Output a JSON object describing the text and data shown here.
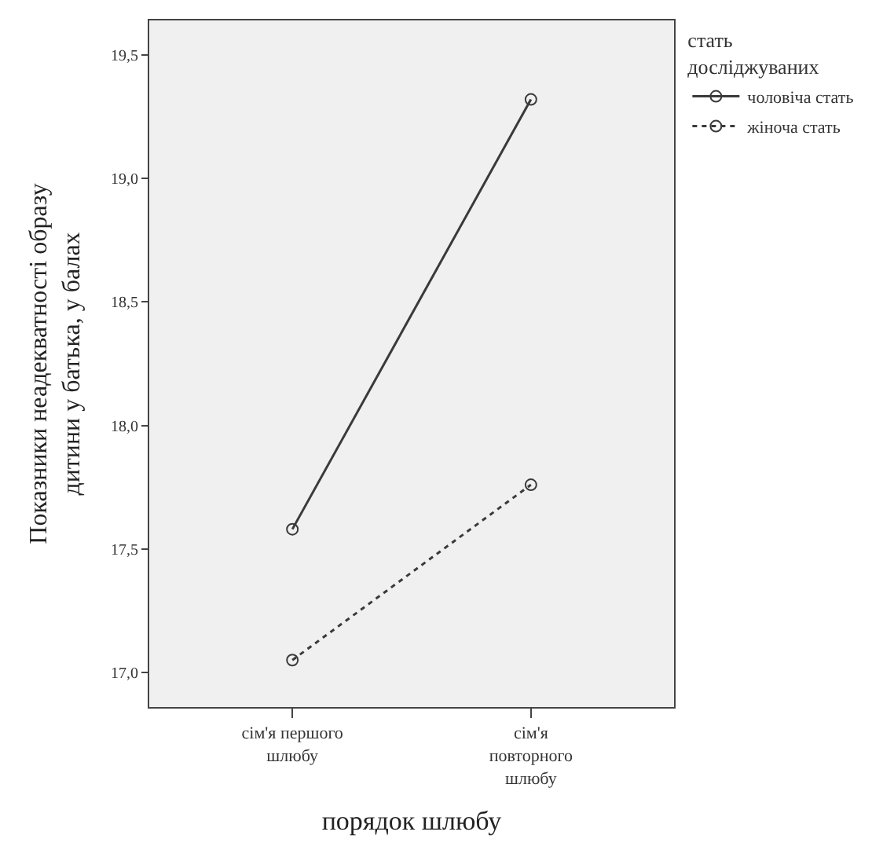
{
  "chart_data": {
    "type": "line",
    "xlabel": "порядок шлюбу",
    "ylabel": "Показники неадекватності образу дитини у батька, у балах",
    "legend_title": "стать досліджуваних",
    "categories": [
      "сім'я першого шлюбу",
      "сім'я повторного шлюбу"
    ],
    "series": [
      {
        "name": "чоловіча стать",
        "color": "#3a3a3a",
        "values": [
          17.58,
          19.32
        ],
        "line_style": "solid"
      },
      {
        "name": "жіноча стать",
        "color": "#3a3a3a",
        "values": [
          17.05,
          17.76
        ],
        "line_style": "dotted"
      }
    ],
    "ylim": [
      16.86,
      19.64
    ],
    "yticks": [
      {
        "value": 17.0,
        "label": "17,0"
      },
      {
        "value": 17.5,
        "label": "17,5"
      },
      {
        "value": 18.0,
        "label": "18,0"
      },
      {
        "value": 18.5,
        "label": "18,5"
      },
      {
        "value": 19.0,
        "label": "19,0"
      },
      {
        "value": 19.5,
        "label": "19,5"
      }
    ],
    "marker": "circle",
    "grid": false,
    "legend": "top right"
  }
}
